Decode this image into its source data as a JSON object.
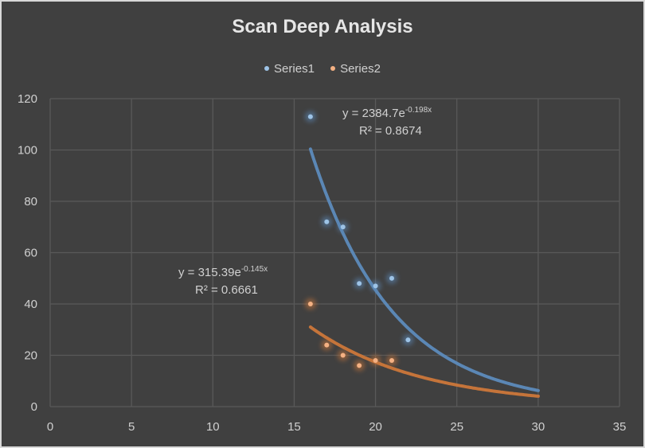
{
  "chart": {
    "title": "Scan Deep Analysis",
    "legend": [
      {
        "name": "Series1",
        "color": "#9dc3e6"
      },
      {
        "name": "Series2",
        "color": "#f4b183"
      }
    ],
    "colors": {
      "background": "#404040",
      "gridline": "#595959",
      "series1_point": "#9dc3e6",
      "series1_trend": "#5b87b5",
      "series2_point": "#f4b183",
      "series2_trend": "#c5743a"
    },
    "trendlines": {
      "series1": {
        "equation_base": "y = 2384.7e",
        "equation_exp": "-0.198x",
        "r2": "R² = 0.8674"
      },
      "series2": {
        "equation_base": "y = 315.39e",
        "equation_exp": "-0.145x",
        "r2": "R² = 0.6661"
      }
    }
  },
  "chart_data": {
    "type": "scatter",
    "title": "Scan Deep Analysis",
    "xlabel": "",
    "ylabel": "",
    "xlim": [
      0,
      35
    ],
    "ylim": [
      0,
      120
    ],
    "x_ticks": [
      0,
      5,
      10,
      15,
      20,
      25,
      30,
      35
    ],
    "y_ticks": [
      0,
      20,
      40,
      60,
      80,
      100,
      120
    ],
    "grid": true,
    "legend_position": "top",
    "series": [
      {
        "name": "Series1",
        "x": [
          16,
          17,
          18,
          19,
          20,
          21,
          22
        ],
        "y": [
          113,
          72,
          70,
          48,
          47,
          50,
          26
        ],
        "trendline": {
          "type": "exponential",
          "a": 2384.7,
          "b": -0.198,
          "r2": 0.8674,
          "x_range": [
            16,
            30
          ],
          "label": "y = 2384.7e^-0.198x, R² = 0.8674"
        }
      },
      {
        "name": "Series2",
        "x": [
          16,
          17,
          18,
          19,
          20,
          21
        ],
        "y": [
          40,
          24,
          20,
          16,
          18,
          18
        ],
        "trendline": {
          "type": "exponential",
          "a": 315.39,
          "b": -0.145,
          "r2": 0.6661,
          "x_range": [
            16,
            30
          ],
          "label": "y = 315.39e^-0.145x, R² = 0.6661"
        }
      }
    ]
  }
}
